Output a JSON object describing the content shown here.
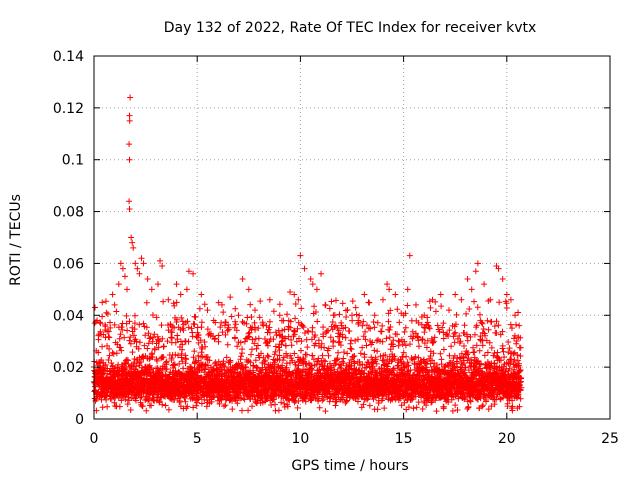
{
  "chart_data": {
    "type": "scatter",
    "title": "Day 132 of 2022, Rate Of TEC Index for receiver kvtx",
    "xlabel": "GPS time / hours",
    "ylabel": "ROTI / TECUs",
    "xlim": [
      0,
      25
    ],
    "ylim": [
      0,
      0.14
    ],
    "xticks": [
      0,
      5,
      10,
      15,
      20,
      25
    ],
    "xtick_labels": [
      "0",
      "5",
      "10",
      "15",
      "20",
      "25"
    ],
    "yticks": [
      0,
      0.02,
      0.04,
      0.06,
      0.08,
      0.1,
      0.12,
      0.14
    ],
    "ytick_labels": [
      "0",
      "0.02",
      "0.04",
      "0.06",
      "0.08",
      "0.1",
      "0.12",
      "0.14"
    ],
    "grid": true,
    "marker": "plus",
    "color": "#ff0000",
    "series": [
      {
        "points": [
          [
            0.05,
            0.043
          ],
          [
            0.15,
            0.038
          ],
          [
            0.4,
            0.045
          ],
          [
            0.6,
            0.041
          ],
          [
            0.9,
            0.048
          ],
          [
            1.0,
            0.044
          ],
          [
            1.2,
            0.052
          ],
          [
            1.3,
            0.06
          ],
          [
            1.4,
            0.058
          ],
          [
            1.5,
            0.055
          ],
          [
            1.6,
            0.05
          ],
          [
            1.75,
            0.124
          ],
          [
            1.72,
            0.117
          ],
          [
            1.73,
            0.115
          ],
          [
            1.7,
            0.106
          ],
          [
            1.72,
            0.1
          ],
          [
            1.7,
            0.084
          ],
          [
            1.72,
            0.081
          ],
          [
            1.8,
            0.07
          ],
          [
            1.85,
            0.068
          ],
          [
            1.9,
            0.066
          ],
          [
            2.0,
            0.06
          ],
          [
            2.1,
            0.058
          ],
          [
            2.2,
            0.056
          ],
          [
            2.3,
            0.062
          ],
          [
            2.4,
            0.06
          ],
          [
            2.6,
            0.054
          ],
          [
            2.8,
            0.05
          ],
          [
            3.2,
            0.061
          ],
          [
            3.3,
            0.059
          ],
          [
            3.1,
            0.052
          ],
          [
            3.6,
            0.046
          ],
          [
            4.0,
            0.052
          ],
          [
            4.2,
            0.048
          ],
          [
            4.5,
            0.05
          ],
          [
            4.8,
            0.056
          ],
          [
            4.6,
            0.057
          ],
          [
            5.2,
            0.048
          ],
          [
            5.5,
            0.042
          ],
          [
            5.8,
            0.038
          ],
          [
            6.2,
            0.044
          ],
          [
            6.6,
            0.047
          ],
          [
            7.0,
            0.04
          ],
          [
            7.2,
            0.054
          ],
          [
            7.5,
            0.05
          ],
          [
            7.8,
            0.042
          ],
          [
            8.2,
            0.036
          ],
          [
            8.5,
            0.03
          ],
          [
            9.0,
            0.04
          ],
          [
            9.5,
            0.049
          ],
          [
            9.7,
            0.048
          ],
          [
            9.9,
            0.046
          ],
          [
            10.0,
            0.063
          ],
          [
            10.2,
            0.058
          ],
          [
            10.5,
            0.054
          ],
          [
            10.6,
            0.052
          ],
          [
            10.8,
            0.05
          ],
          [
            11.0,
            0.056
          ],
          [
            11.2,
            0.044
          ],
          [
            11.6,
            0.04
          ],
          [
            12.0,
            0.036
          ],
          [
            12.5,
            0.04
          ],
          [
            12.8,
            0.038
          ],
          [
            13.1,
            0.048
          ],
          [
            13.3,
            0.045
          ],
          [
            13.6,
            0.04
          ],
          [
            14.0,
            0.046
          ],
          [
            14.2,
            0.052
          ],
          [
            14.3,
            0.05
          ],
          [
            14.6,
            0.048
          ],
          [
            15.0,
            0.04
          ],
          [
            15.3,
            0.063
          ],
          [
            15.2,
            0.05
          ],
          [
            15.6,
            0.044
          ],
          [
            16.0,
            0.04
          ],
          [
            16.4,
            0.046
          ],
          [
            16.8,
            0.048
          ],
          [
            17.2,
            0.042
          ],
          [
            17.5,
            0.048
          ],
          [
            17.8,
            0.046
          ],
          [
            18.1,
            0.054
          ],
          [
            18.3,
            0.05
          ],
          [
            18.6,
            0.06
          ],
          [
            18.5,
            0.057
          ],
          [
            18.9,
            0.052
          ],
          [
            19.2,
            0.046
          ],
          [
            19.5,
            0.059
          ],
          [
            19.6,
            0.058
          ],
          [
            19.8,
            0.054
          ],
          [
            20.0,
            0.048
          ],
          [
            20.2,
            0.046
          ],
          [
            20.4,
            0.04
          ],
          [
            20.6,
            0.036
          ]
        ],
        "dense_band": {
          "x_range": [
            0,
            20.7
          ],
          "bulk_range": [
            0.003,
            0.028
          ],
          "typical_peak": 0.038
        }
      }
    ]
  }
}
